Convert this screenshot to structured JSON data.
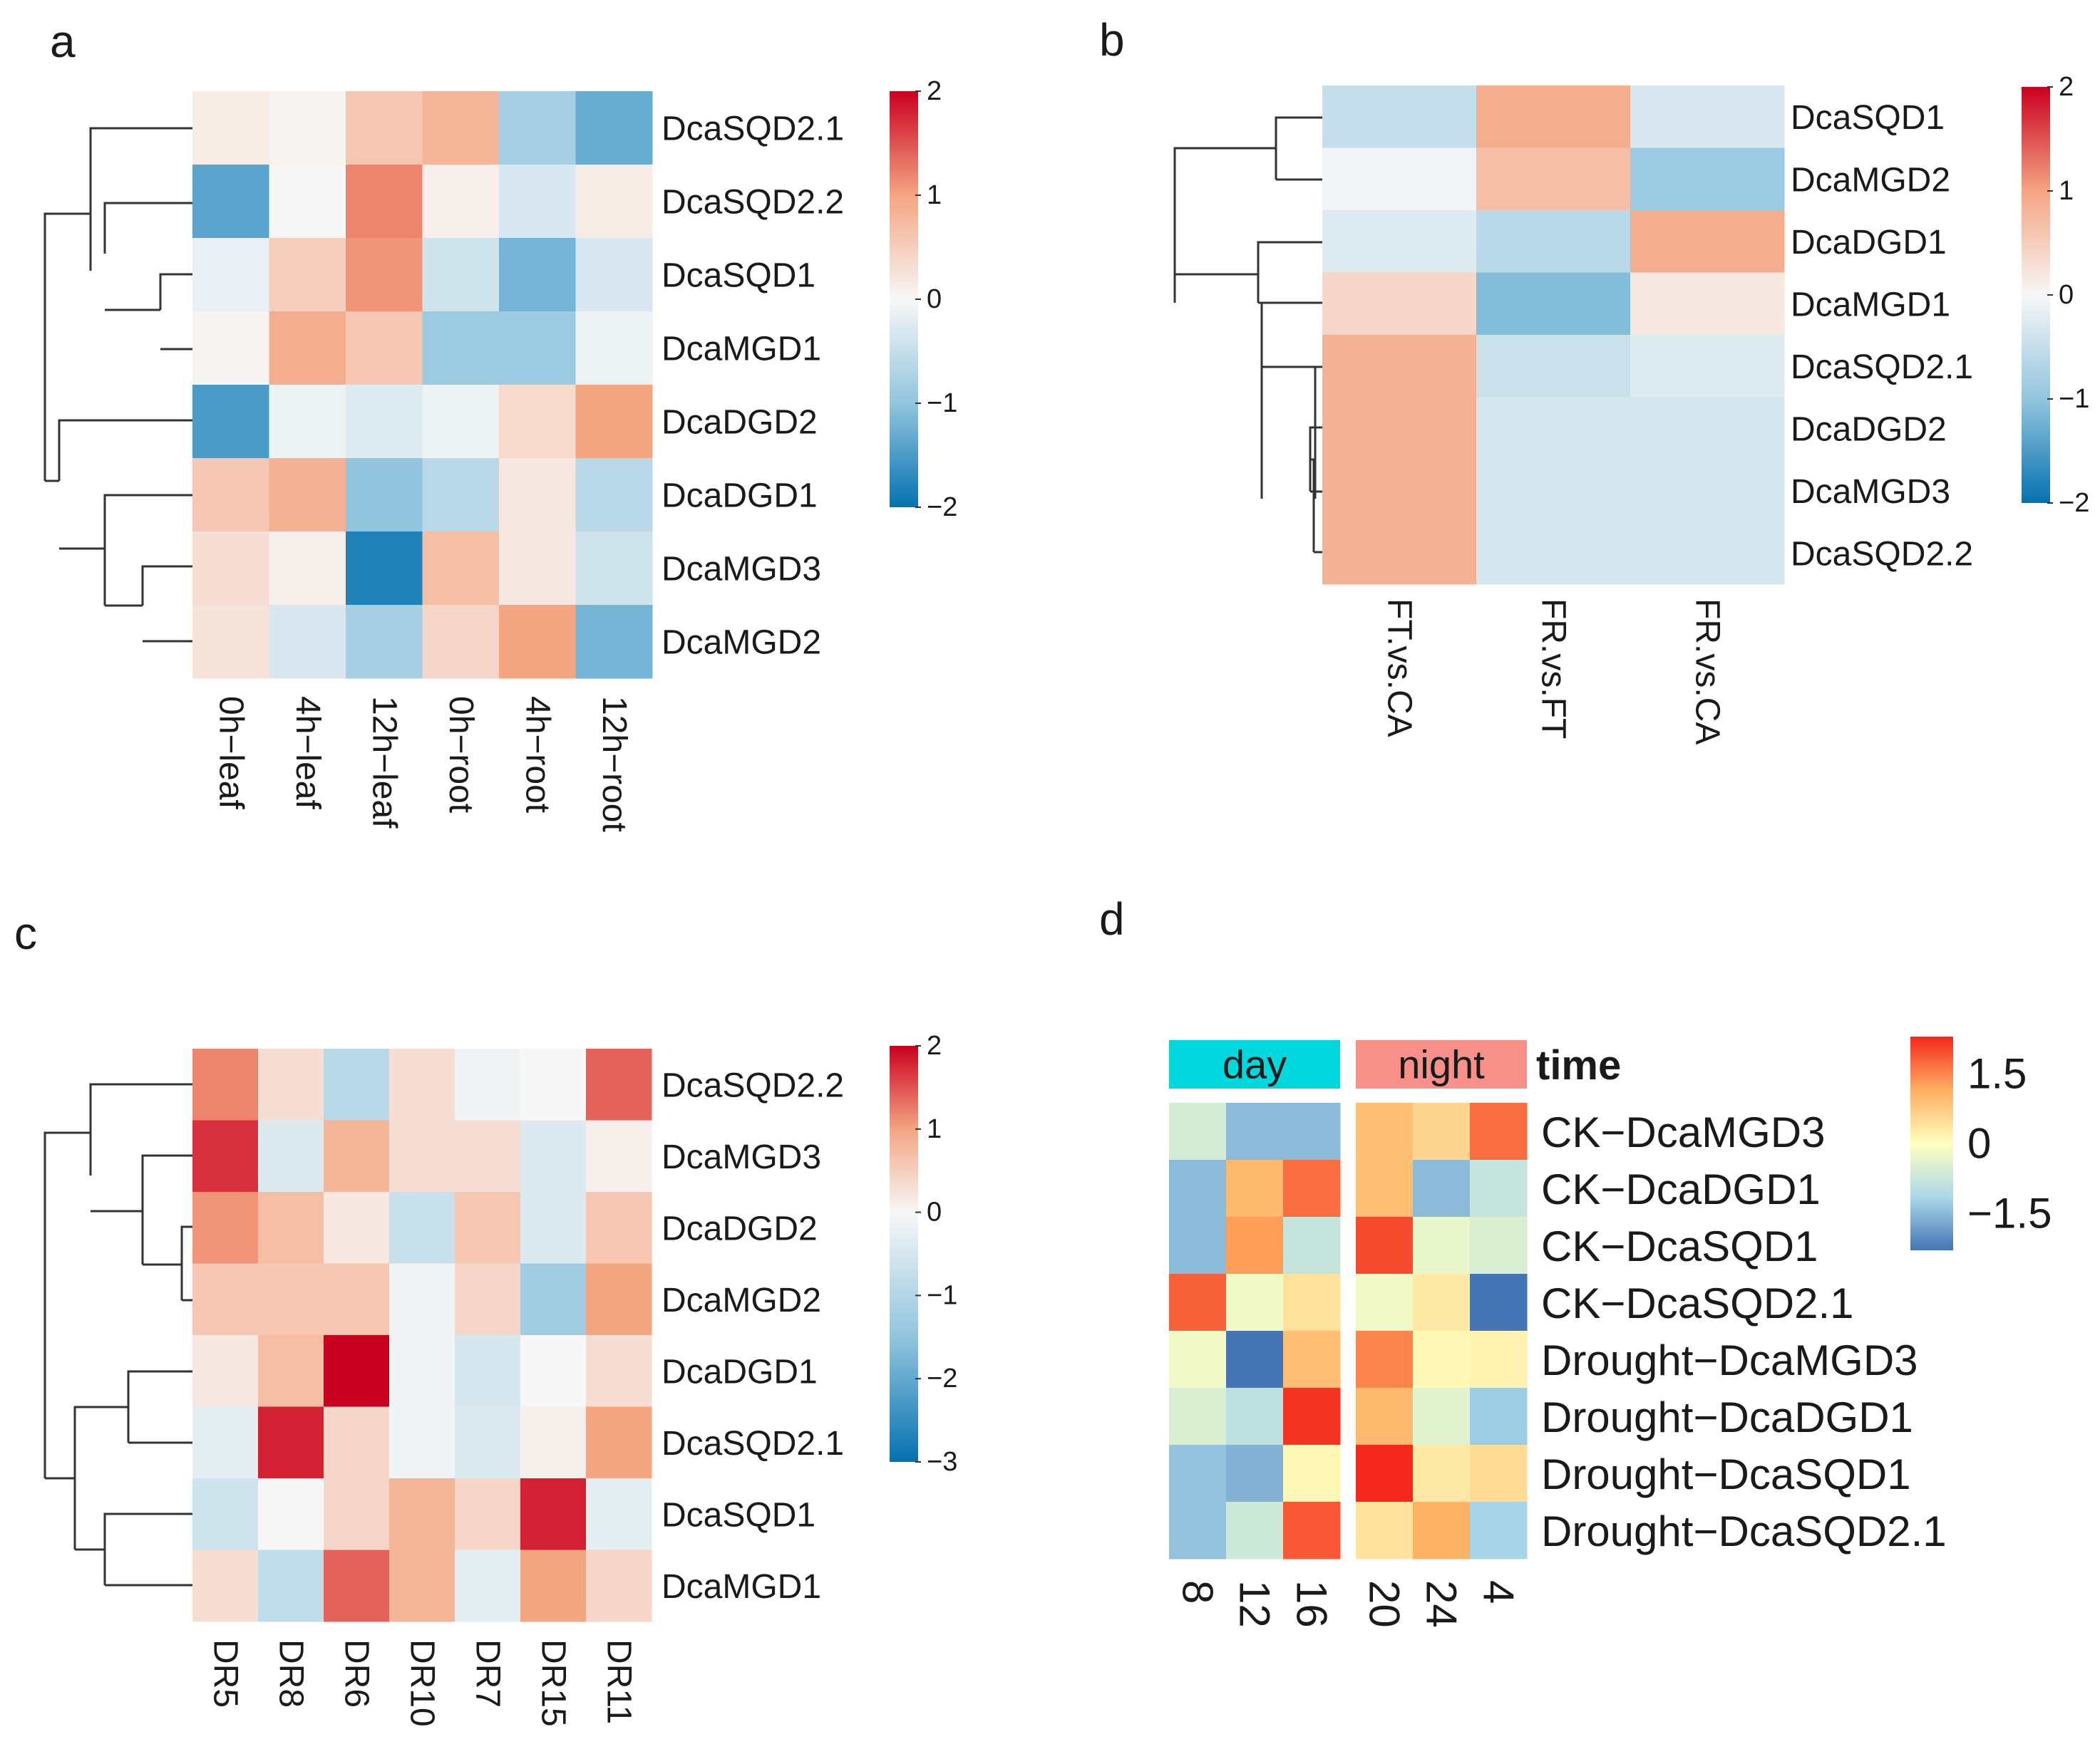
{
  "chart_data": [
    {
      "panel": "a",
      "type": "heatmap",
      "rows": [
        "DcaSQD2.1",
        "DcaSQD2.2",
        "DcaSQD1",
        "DcaMGD1",
        "DcaDGD2",
        "DcaDGD1",
        "DcaMGD3",
        "DcaMGD2"
      ],
      "columns": [
        "0h−leaf",
        "4h−leaf",
        "12h−leaf",
        "0h−root",
        "4h−root",
        "12h−root"
      ],
      "values": [
        [
          0.15,
          0.05,
          0.6,
          0.8,
          -0.8,
          -1.3
        ],
        [
          -1.4,
          0.0,
          1.2,
          0.1,
          -0.3,
          0.15
        ],
        [
          -0.15,
          0.5,
          1.1,
          -0.4,
          -1.2,
          -0.3
        ],
        [
          0.05,
          0.9,
          0.6,
          -0.9,
          -0.9,
          -0.1
        ],
        [
          -1.5,
          -0.1,
          -0.25,
          -0.1,
          0.35,
          1.0
        ],
        [
          0.6,
          0.85,
          -1.0,
          -0.6,
          0.2,
          -0.6
        ],
        [
          0.3,
          0.1,
          -1.8,
          0.7,
          0.2,
          -0.4
        ],
        [
          0.25,
          -0.3,
          -0.8,
          0.4,
          1.0,
          -1.2
        ]
      ],
      "color_scale": {
        "min": -2,
        "max": 2,
        "ticks": [
          "2",
          "1",
          "0",
          "−1",
          "−2"
        ]
      }
    },
    {
      "panel": "b",
      "type": "heatmap",
      "rows": [
        "DcaSQD1",
        "DcaMGD2",
        "DcaDGD1",
        "DcaMGD1",
        "DcaSQD2.1",
        "DcaDGD2",
        "DcaMGD3",
        "DcaSQD2.2"
      ],
      "columns": [
        "FT.vs.CA",
        "FR.vs.FT",
        "FR.vs.CA"
      ],
      "values": [
        [
          -0.5,
          0.9,
          -0.3
        ],
        [
          -0.05,
          0.7,
          -0.9
        ],
        [
          -0.25,
          -0.6,
          0.9
        ],
        [
          0.4,
          -1.1,
          0.2
        ],
        [
          0.85,
          -0.45,
          -0.25
        ],
        [
          0.85,
          -0.35,
          -0.35
        ],
        [
          0.85,
          -0.35,
          -0.35
        ],
        [
          0.85,
          -0.35,
          -0.35
        ]
      ],
      "color_scale": {
        "min": -2,
        "max": 2,
        "ticks": [
          "2",
          "1",
          "0",
          "−1",
          "−2"
        ]
      }
    },
    {
      "panel": "c",
      "type": "heatmap",
      "rows": [
        "DcaSQD2.2",
        "DcaMGD3",
        "DcaDGD2",
        "DcaMGD2",
        "DcaDGD1",
        "DcaSQD2.1",
        "DcaSQD1",
        "DcaMGD1"
      ],
      "columns": [
        "DR5",
        "DR8",
        "DR6",
        "DR10",
        "DR7",
        "DR15",
        "DR11"
      ],
      "values": [
        [
          1.2,
          0.3,
          -0.9,
          0.3,
          -0.1,
          0.0,
          1.4
        ],
        [
          1.7,
          -0.4,
          0.8,
          0.3,
          0.3,
          -0.4,
          0.1
        ],
        [
          1.1,
          0.7,
          0.2,
          -0.7,
          0.6,
          -0.4,
          0.6
        ],
        [
          0.6,
          0.6,
          0.6,
          -0.1,
          0.4,
          -1.3,
          1.0
        ],
        [
          0.2,
          0.7,
          2.3,
          -0.1,
          -0.5,
          0.0,
          0.3
        ],
        [
          -0.3,
          1.8,
          0.4,
          -0.1,
          -0.4,
          0.1,
          1.0
        ],
        [
          -0.6,
          0.0,
          0.4,
          0.8,
          0.4,
          1.8,
          -0.3
        ],
        [
          0.3,
          -0.8,
          1.4,
          0.8,
          -0.3,
          1.0,
          0.4
        ]
      ],
      "color_scale": {
        "min": -3,
        "max": 2,
        "ticks": [
          "2",
          "1",
          "0",
          "−1",
          "−2",
          "−3"
        ]
      }
    },
    {
      "panel": "d",
      "type": "heatmap",
      "rows": [
        "CK−DcaMGD3",
        "CK−DcaDGD1",
        "CK−DcaSQD1",
        "CK−DcaSQD2.1",
        "Drought−DcaMGD3",
        "Drought−DcaDGD1",
        "Drought−DcaSQD1",
        "Drought−DcaSQD2.1"
      ],
      "columns": [
        "8",
        "12",
        "16",
        "20",
        "24",
        "4"
      ],
      "column_groups": [
        {
          "label": "day",
          "count": 3,
          "color": "#00d8de"
        },
        {
          "label": "night",
          "count": 3,
          "color": "#f8908a"
        }
      ],
      "annotation_title": "time",
      "values": [
        [
          -0.6,
          -1.5,
          -1.5,
          0.9,
          0.6,
          1.7
        ],
        [
          -1.5,
          1.0,
          1.7,
          0.9,
          -1.5,
          -0.8
        ],
        [
          -1.5,
          1.3,
          -0.8,
          2.0,
          -0.3,
          -0.5
        ],
        [
          1.8,
          -0.2,
          0.4,
          -0.2,
          0.3,
          -2.3
        ],
        [
          -0.2,
          -2.4,
          0.9,
          1.5,
          0.1,
          0.2
        ],
        [
          -0.5,
          -0.9,
          2.2,
          1.0,
          -0.4,
          -1.3
        ],
        [
          -1.4,
          -1.6,
          0.1,
          2.4,
          0.3,
          0.5
        ],
        [
          -1.4,
          -0.7,
          1.9,
          0.4,
          1.1,
          -1.2
        ]
      ],
      "color_scale": {
        "min": -2.3,
        "max": 2.3,
        "ticks": [
          "1.5",
          "0",
          "−1.5"
        ]
      }
    }
  ],
  "panel_letters": [
    "a",
    "b",
    "c",
    "d"
  ],
  "colors": {
    "diverging_low": "#2166ac",
    "diverging_mid": "#f7f7f7",
    "diverging_high": "#d6262d",
    "spectral_low": "#4575b4",
    "spectral_mid": "#ffffbf",
    "spectral_high": "#f5281e"
  }
}
